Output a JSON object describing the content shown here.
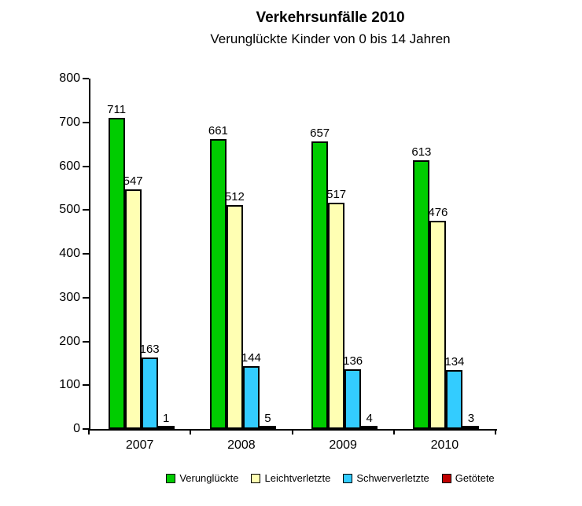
{
  "chart_data": {
    "type": "bar",
    "title": "Verkehrsunfälle 2010",
    "subtitle": "Verunglückte Kinder von 0 bis 14 Jahren",
    "categories": [
      "2007",
      "2008",
      "2009",
      "2010"
    ],
    "series": [
      {
        "name": "Verunglückte",
        "color": "#00CC00",
        "values": [
          711,
          661,
          657,
          613
        ]
      },
      {
        "name": "Leichtverletzte",
        "color": "#FFFFB3",
        "values": [
          547,
          512,
          517,
          476
        ]
      },
      {
        "name": "Schwerverletzte",
        "color": "#33CCFF",
        "values": [
          163,
          144,
          136,
          134
        ]
      },
      {
        "name": "Getötete",
        "color": "#C00000",
        "values": [
          1,
          5,
          4,
          3
        ]
      }
    ],
    "ylim": [
      0,
      800
    ],
    "ytick_step": 100,
    "grid": false,
    "legend_position": "bottom",
    "value_labels_shown": true
  }
}
